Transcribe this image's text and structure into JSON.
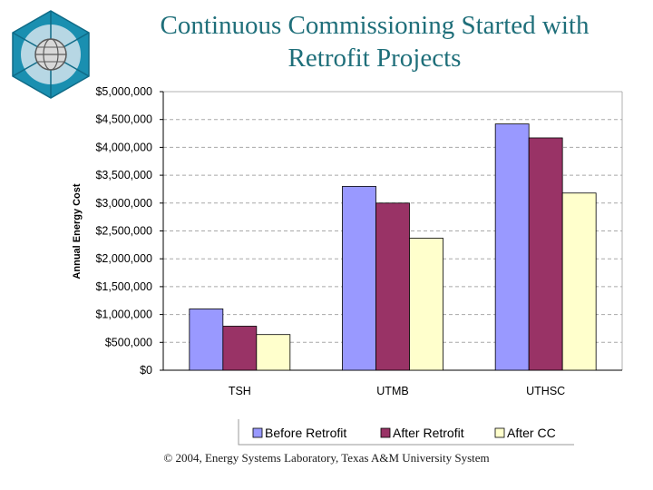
{
  "title": [
    "Continuous Commissioning Started with",
    "Retrofit Projects"
  ],
  "footer": "© 2004, Energy Systems Laboratory, Texas A&M University System",
  "logo": {
    "icon": "energy-systems-laboratory-logo-icon",
    "colors": [
      "#1a8fb0",
      "#b7d7e4",
      "#5a5a5a"
    ]
  },
  "chart_data": {
    "type": "bar",
    "ylabel": "Annual Energy Cost",
    "xlabel": "",
    "ylim": [
      0,
      5000000
    ],
    "yticks": [
      0,
      500000,
      1000000,
      1500000,
      2000000,
      2500000,
      3000000,
      3500000,
      4000000,
      4500000,
      5000000
    ],
    "ytick_labels": [
      "$0",
      "$500,000",
      "$1,000,000",
      "$1,500,000",
      "$2,000,000",
      "$2,500,000",
      "$3,000,000",
      "$3,500,000",
      "$4,000,000",
      "$4,500,000",
      "$5,000,000"
    ],
    "grid": true,
    "legend": "bottom",
    "categories": [
      "TSH",
      "UTMB",
      "UTHSC"
    ],
    "series": [
      {
        "name": "Before Retrofit",
        "color": "#9999ff",
        "values": [
          1100000,
          3300000,
          4420000
        ]
      },
      {
        "name": "After Retrofit",
        "color": "#993366",
        "values": [
          790000,
          3000000,
          4170000
        ]
      },
      {
        "name": "After CC",
        "color": "#ffffcc",
        "values": [
          640000,
          2370000,
          3180000
        ]
      }
    ]
  }
}
